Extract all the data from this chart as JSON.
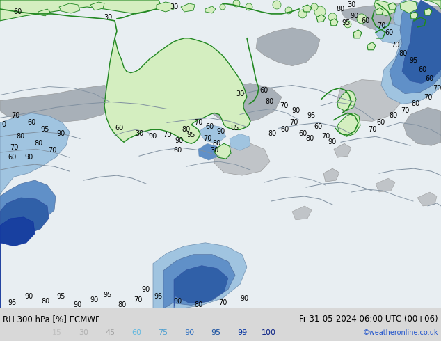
{
  "title_left": "RH 300 hPa [%] ECMWF",
  "title_right": "Fr 31-05-2024 06:00 UTC (00+06)",
  "watermark": "©weatheronline.co.uk",
  "colorbar_values": [
    15,
    30,
    45,
    60,
    75,
    90,
    95,
    99,
    100
  ],
  "colorbar_label_colors": [
    "#c0c0c0",
    "#b0b0b0",
    "#a0a0a0",
    "#60b8e0",
    "#50a0d0",
    "#3070c0",
    "#1850a0",
    "#0030a0",
    "#001880"
  ],
  "bg_color": "#d8d8d8",
  "ocean_color": "#e8eef2",
  "land_color": "#c8dfc8",
  "aus_fill": "#d4eec0",
  "aus_edge": "#228822",
  "gray_low": "#c0c4c8",
  "gray_mid": "#a8b0b8",
  "gray_high": "#9098a4",
  "blue_light": "#a0c4e0",
  "blue_mid": "#6090c8",
  "blue_dark": "#3060a8",
  "blue_deep": "#1840a0",
  "fig_width": 6.34,
  "fig_height": 4.9,
  "dpi": 100
}
